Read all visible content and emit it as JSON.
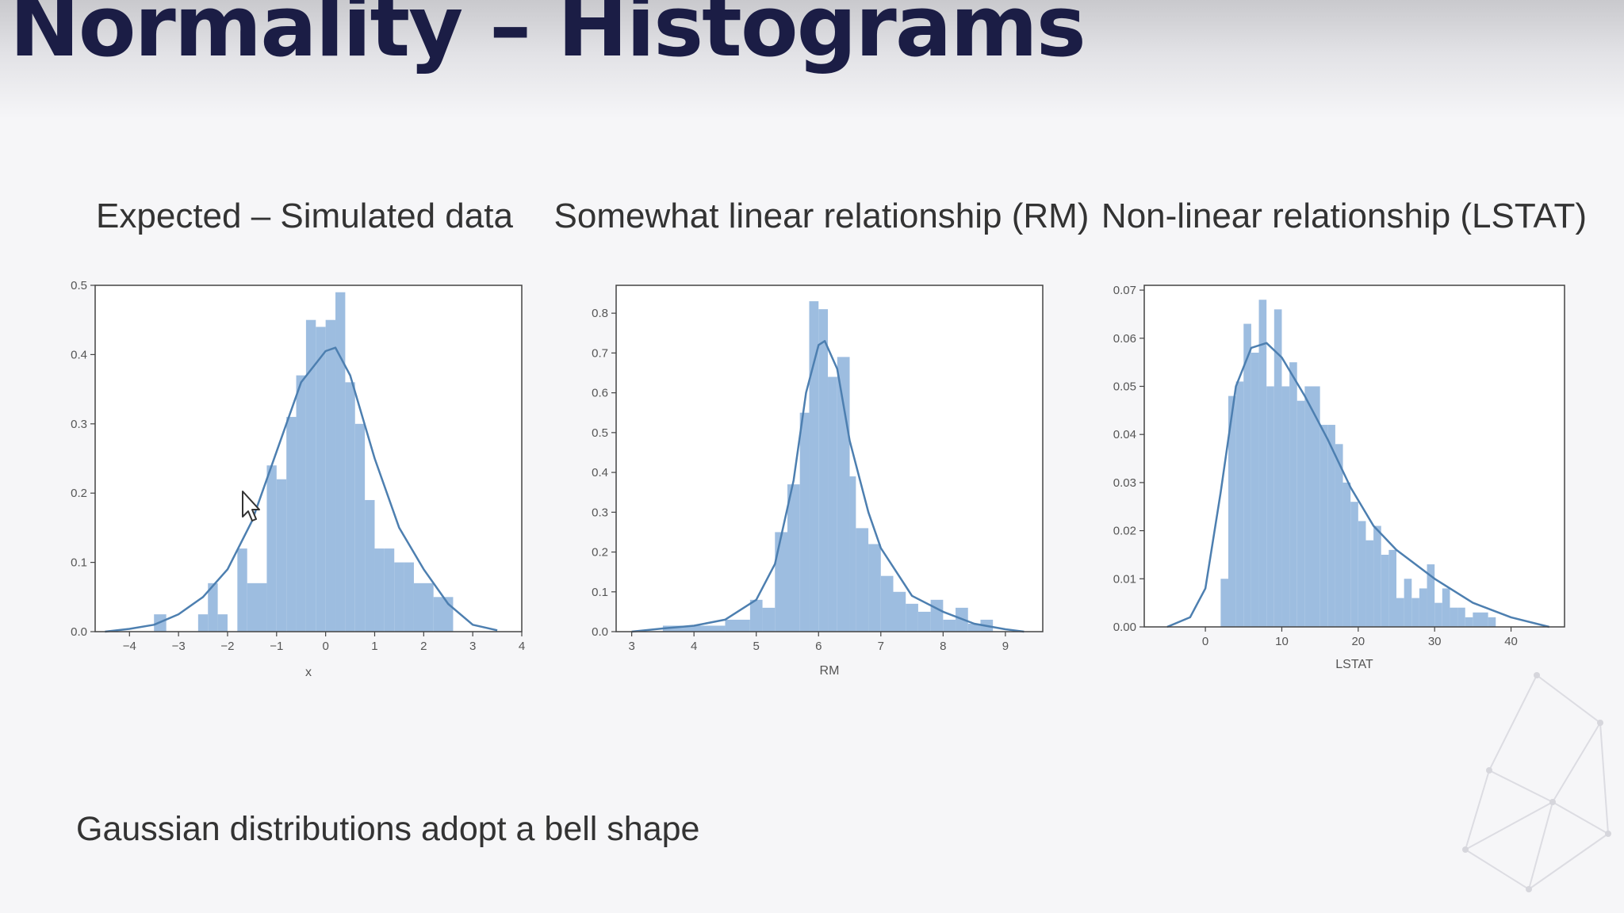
{
  "slide": {
    "title": "Normality – Histograms",
    "footer": "Gaussian distributions adopt a bell shape"
  },
  "colors": {
    "bar": "#9dbde0",
    "kde": "#4d7fb0",
    "title": "#1b1d45"
  },
  "chart_data": [
    {
      "type": "bar",
      "title": "Expected – Simulated data",
      "xlabel": "x",
      "ylabel": "",
      "xlim": [
        -4.7,
        4.0
      ],
      "ylim": [
        0,
        0.5
      ],
      "xticks": [
        -4,
        -3,
        -2,
        -1,
        0,
        1,
        2,
        3,
        4
      ],
      "yticks": [
        0.0,
        0.1,
        0.2,
        0.3,
        0.4,
        0.5
      ],
      "grid": false,
      "bins": [
        {
          "x0": -3.5,
          "x1": -3.25,
          "h": 0.025
        },
        {
          "x0": -2.6,
          "x1": -2.4,
          "h": 0.025
        },
        {
          "x0": -2.4,
          "x1": -2.2,
          "h": 0.07
        },
        {
          "x0": -2.2,
          "x1": -2.0,
          "h": 0.025
        },
        {
          "x0": -1.8,
          "x1": -1.6,
          "h": 0.12
        },
        {
          "x0": -1.6,
          "x1": -1.2,
          "h": 0.07
        },
        {
          "x0": -1.2,
          "x1": -1.0,
          "h": 0.24
        },
        {
          "x0": -1.0,
          "x1": -0.8,
          "h": 0.22
        },
        {
          "x0": -0.8,
          "x1": -0.6,
          "h": 0.31
        },
        {
          "x0": -0.6,
          "x1": -0.4,
          "h": 0.37
        },
        {
          "x0": -0.4,
          "x1": -0.2,
          "h": 0.45
        },
        {
          "x0": -0.2,
          "x1": 0.0,
          "h": 0.44
        },
        {
          "x0": 0.0,
          "x1": 0.2,
          "h": 0.45
        },
        {
          "x0": 0.2,
          "x1": 0.4,
          "h": 0.49
        },
        {
          "x0": 0.4,
          "x1": 0.6,
          "h": 0.36
        },
        {
          "x0": 0.6,
          "x1": 0.8,
          "h": 0.3
        },
        {
          "x0": 0.8,
          "x1": 1.0,
          "h": 0.19
        },
        {
          "x0": 1.0,
          "x1": 1.2,
          "h": 0.12
        },
        {
          "x0": 1.2,
          "x1": 1.4,
          "h": 0.12
        },
        {
          "x0": 1.4,
          "x1": 1.6,
          "h": 0.1
        },
        {
          "x0": 1.6,
          "x1": 1.8,
          "h": 0.1
        },
        {
          "x0": 1.8,
          "x1": 2.2,
          "h": 0.07
        },
        {
          "x0": 2.2,
          "x1": 2.6,
          "h": 0.05
        }
      ],
      "kde": {
        "x": [
          -4.5,
          -4.0,
          -3.5,
          -3.0,
          -2.5,
          -2.0,
          -1.5,
          -1.0,
          -0.5,
          0.0,
          0.2,
          0.5,
          1.0,
          1.5,
          2.0,
          2.5,
          3.0,
          3.5
        ],
        "y": [
          0.0,
          0.004,
          0.01,
          0.025,
          0.05,
          0.09,
          0.16,
          0.26,
          0.36,
          0.405,
          0.41,
          0.37,
          0.25,
          0.15,
          0.09,
          0.04,
          0.01,
          0.002
        ]
      }
    },
    {
      "type": "bar",
      "title": "Somewhat linear relationship (RM)",
      "xlabel": "RM",
      "ylabel": "",
      "xlim": [
        2.75,
        9.6
      ],
      "ylim": [
        0,
        0.87
      ],
      "xticks": [
        3,
        4,
        5,
        6,
        7,
        8,
        9
      ],
      "yticks": [
        0.0,
        0.1,
        0.2,
        0.3,
        0.4,
        0.5,
        0.6,
        0.7,
        0.8
      ],
      "grid": false,
      "bins": [
        {
          "x0": 3.5,
          "x1": 4.5,
          "h": 0.015
        },
        {
          "x0": 4.5,
          "x1": 4.9,
          "h": 0.03
        },
        {
          "x0": 4.9,
          "x1": 5.1,
          "h": 0.08
        },
        {
          "x0": 5.1,
          "x1": 5.3,
          "h": 0.06
        },
        {
          "x0": 5.3,
          "x1": 5.5,
          "h": 0.25
        },
        {
          "x0": 5.5,
          "x1": 5.7,
          "h": 0.37
        },
        {
          "x0": 5.7,
          "x1": 5.85,
          "h": 0.55
        },
        {
          "x0": 5.85,
          "x1": 6.0,
          "h": 0.83
        },
        {
          "x0": 6.0,
          "x1": 6.15,
          "h": 0.81
        },
        {
          "x0": 6.15,
          "x1": 6.3,
          "h": 0.64
        },
        {
          "x0": 6.3,
          "x1": 6.5,
          "h": 0.69
        },
        {
          "x0": 6.5,
          "x1": 6.6,
          "h": 0.39
        },
        {
          "x0": 6.6,
          "x1": 6.8,
          "h": 0.26
        },
        {
          "x0": 6.8,
          "x1": 7.0,
          "h": 0.22
        },
        {
          "x0": 7.0,
          "x1": 7.2,
          "h": 0.14
        },
        {
          "x0": 7.2,
          "x1": 7.4,
          "h": 0.1
        },
        {
          "x0": 7.4,
          "x1": 7.6,
          "h": 0.07
        },
        {
          "x0": 7.6,
          "x1": 7.8,
          "h": 0.05
        },
        {
          "x0": 7.8,
          "x1": 8.0,
          "h": 0.08
        },
        {
          "x0": 8.0,
          "x1": 8.2,
          "h": 0.03
        },
        {
          "x0": 8.2,
          "x1": 8.4,
          "h": 0.06
        },
        {
          "x0": 8.4,
          "x1": 8.6,
          "h": 0.02
        },
        {
          "x0": 8.6,
          "x1": 8.8,
          "h": 0.03
        }
      ],
      "kde": {
        "x": [
          3.0,
          3.5,
          4.0,
          4.5,
          5.0,
          5.3,
          5.6,
          5.8,
          6.0,
          6.1,
          6.3,
          6.5,
          6.8,
          7.0,
          7.5,
          8.0,
          8.5,
          9.0,
          9.3
        ],
        "y": [
          0.0,
          0.008,
          0.015,
          0.03,
          0.08,
          0.17,
          0.38,
          0.6,
          0.72,
          0.73,
          0.66,
          0.48,
          0.3,
          0.21,
          0.09,
          0.05,
          0.02,
          0.006,
          0.0
        ]
      }
    },
    {
      "type": "bar",
      "title": "Non-linear relationship (LSTAT)",
      "xlabel": "LSTAT",
      "ylabel": "",
      "xlim": [
        -8,
        47
      ],
      "ylim": [
        0,
        0.071
      ],
      "xticks": [
        0,
        10,
        20,
        30,
        40
      ],
      "yticks": [
        0.0,
        0.01,
        0.02,
        0.03,
        0.04,
        0.05,
        0.06,
        0.07
      ],
      "grid": false,
      "bins": [
        {
          "x0": 2.0,
          "x1": 3.0,
          "h": 0.01
        },
        {
          "x0": 3.0,
          "x1": 4.0,
          "h": 0.048
        },
        {
          "x0": 4.0,
          "x1": 5.0,
          "h": 0.051
        },
        {
          "x0": 5.0,
          "x1": 6.0,
          "h": 0.063
        },
        {
          "x0": 6.0,
          "x1": 7.0,
          "h": 0.057
        },
        {
          "x0": 7.0,
          "x1": 8.0,
          "h": 0.068
        },
        {
          "x0": 8.0,
          "x1": 9.0,
          "h": 0.05
        },
        {
          "x0": 9.0,
          "x1": 10.0,
          "h": 0.066
        },
        {
          "x0": 10.0,
          "x1": 11.0,
          "h": 0.05
        },
        {
          "x0": 11.0,
          "x1": 12.0,
          "h": 0.055
        },
        {
          "x0": 12.0,
          "x1": 13.0,
          "h": 0.047
        },
        {
          "x0": 13.0,
          "x1": 14.0,
          "h": 0.05
        },
        {
          "x0": 14.0,
          "x1": 15.0,
          "h": 0.05
        },
        {
          "x0": 15.0,
          "x1": 16.0,
          "h": 0.042
        },
        {
          "x0": 16.0,
          "x1": 17.0,
          "h": 0.042
        },
        {
          "x0": 17.0,
          "x1": 18.0,
          "h": 0.038
        },
        {
          "x0": 18.0,
          "x1": 19.0,
          "h": 0.03
        },
        {
          "x0": 19.0,
          "x1": 20.0,
          "h": 0.026
        },
        {
          "x0": 20.0,
          "x1": 21.0,
          "h": 0.022
        },
        {
          "x0": 21.0,
          "x1": 22.0,
          "h": 0.018
        },
        {
          "x0": 22.0,
          "x1": 23.0,
          "h": 0.021
        },
        {
          "x0": 23.0,
          "x1": 24.0,
          "h": 0.015
        },
        {
          "x0": 24.0,
          "x1": 25.0,
          "h": 0.016
        },
        {
          "x0": 25.0,
          "x1": 26.0,
          "h": 0.006
        },
        {
          "x0": 26.0,
          "x1": 27.0,
          "h": 0.01
        },
        {
          "x0": 27.0,
          "x1": 28.0,
          "h": 0.006
        },
        {
          "x0": 28.0,
          "x1": 29.0,
          "h": 0.008
        },
        {
          "x0": 29.0,
          "x1": 30.0,
          "h": 0.013
        },
        {
          "x0": 30.0,
          "x1": 31.0,
          "h": 0.005
        },
        {
          "x0": 31.0,
          "x1": 32.0,
          "h": 0.008
        },
        {
          "x0": 32.0,
          "x1": 33.0,
          "h": 0.004
        },
        {
          "x0": 33.0,
          "x1": 34.0,
          "h": 0.004
        },
        {
          "x0": 34.0,
          "x1": 35.0,
          "h": 0.002
        },
        {
          "x0": 35.0,
          "x1": 36.0,
          "h": 0.003
        },
        {
          "x0": 36.0,
          "x1": 37.0,
          "h": 0.003
        },
        {
          "x0": 37.0,
          "x1": 38.0,
          "h": 0.002
        }
      ],
      "kde": {
        "x": [
          -5,
          -2,
          0,
          2,
          4,
          6,
          8,
          10,
          13,
          16,
          19,
          22,
          25,
          30,
          35,
          40,
          45
        ],
        "y": [
          0.0,
          0.002,
          0.008,
          0.028,
          0.05,
          0.058,
          0.059,
          0.056,
          0.048,
          0.039,
          0.029,
          0.021,
          0.016,
          0.01,
          0.005,
          0.002,
          0.0
        ]
      }
    }
  ]
}
